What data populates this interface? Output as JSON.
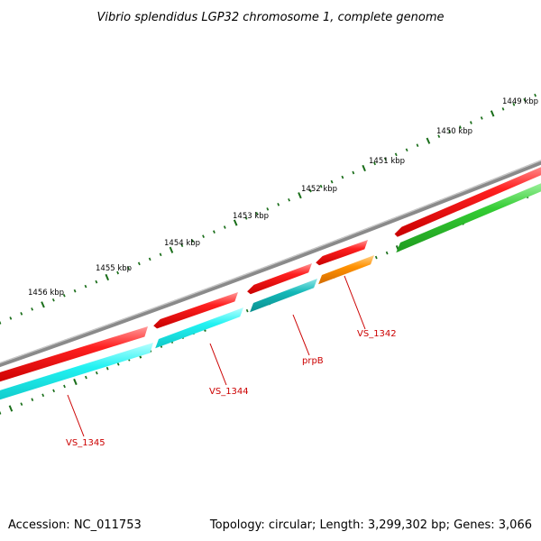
{
  "title": "Vibrio splendidus LGP32 chromosome 1, complete genome",
  "footer": {
    "accession": "Accession: NC_011753",
    "summary": "Topology: circular; Length: 3,299,302 bp; Genes: 3,066"
  },
  "ticks": [
    {
      "label": "1449 kbp"
    },
    {
      "label": "1450 kbp"
    },
    {
      "label": "1451 kbp"
    },
    {
      "label": "1452 kbp"
    },
    {
      "label": "1453 kbp"
    },
    {
      "label": "1454 kbp"
    },
    {
      "label": "1455 kbp"
    },
    {
      "label": "1456 kbp"
    }
  ],
  "gene_labels": [
    {
      "label": "VS_1342"
    },
    {
      "label": "prpB"
    },
    {
      "label": "VS_1344"
    },
    {
      "label": "VS_1345"
    }
  ],
  "colors": {
    "backbone": "#888888",
    "forward_cds": "#ee1111",
    "reverse_cds_cyan": "#22eeee",
    "reverse_cds_teal": "#11b5b5",
    "reverse_cds_orange": "#ff8c00",
    "reverse_cds_green": "#33cc33",
    "ticks": "#1a6e1a",
    "labels": "#cc0000"
  }
}
